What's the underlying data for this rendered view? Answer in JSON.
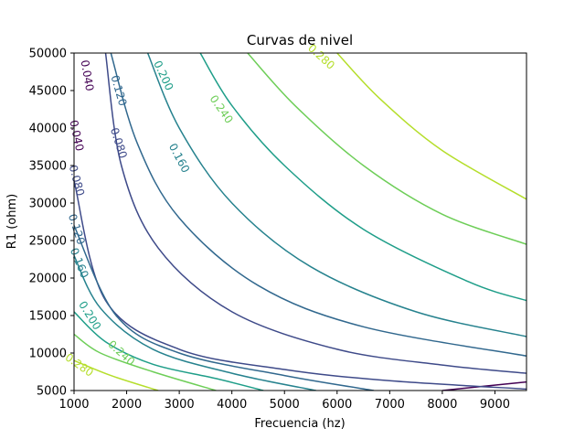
{
  "chart_data": {
    "type": "contour",
    "title": "Curvas de nivel",
    "xlabel": "Frecuencia (hz)",
    "ylabel": "R1 (ohm)",
    "xlim": [
      1000,
      9600
    ],
    "ylim": [
      5000,
      50000
    ],
    "x_ticks": [
      1000,
      2000,
      3000,
      4000,
      5000,
      6000,
      7000,
      8000,
      9000
    ],
    "y_ticks": [
      5000,
      10000,
      15000,
      20000,
      25000,
      30000,
      35000,
      40000,
      45000,
      50000
    ],
    "x_tick_labels": [
      "1000",
      "2000",
      "3000",
      "4000",
      "5000",
      "6000",
      "7000",
      "8000",
      "9000"
    ],
    "y_tick_labels": [
      "5000",
      "10000",
      "15000",
      "20000",
      "25000",
      "30000",
      "35000",
      "40000",
      "45000",
      "50000"
    ],
    "grid": false,
    "colormap": "viridis",
    "levels": [
      {
        "value": 0.04,
        "label": "0.040",
        "color": "#440154",
        "points": [
          [
            8000,
            5000
          ],
          [
            9600,
            6150
          ]
        ]
      },
      {
        "value": 0.08,
        "label": "0.080",
        "color": "#3e4a89",
        "points": [
          [
            1000,
            33000
          ],
          [
            1600,
            17000
          ],
          [
            3000,
            10500
          ],
          [
            5000,
            7800
          ],
          [
            7000,
            6300
          ],
          [
            9600,
            5200
          ]
        ]
      },
      {
        "value": 0.08,
        "label": "0.080",
        "color": "#3e4a89",
        "points": [
          [
            1600,
            50000
          ],
          [
            1900,
            35000
          ],
          [
            2600,
            24000
          ],
          [
            4000,
            15500
          ],
          [
            6000,
            10500
          ],
          [
            8000,
            8400
          ],
          [
            9600,
            7300
          ]
        ]
      },
      {
        "value": 0.12,
        "label": "0.120",
        "color": "#31688e",
        "points": [
          [
            1000,
            27000
          ],
          [
            1800,
            15000
          ],
          [
            3000,
            10000
          ],
          [
            5000,
            7000
          ],
          [
            6700,
            5000
          ]
        ]
      },
      {
        "value": 0.12,
        "label": "0.120",
        "color": "#31688e",
        "points": [
          [
            1700,
            50000
          ],
          [
            2200,
            38000
          ],
          [
            3000,
            28000
          ],
          [
            4500,
            19000
          ],
          [
            6500,
            13500
          ],
          [
            9600,
            9600
          ]
        ]
      },
      {
        "value": 0.16,
        "label": "0.160",
        "color": "#26828e",
        "points": [
          [
            1000,
            23000
          ],
          [
            1500,
            16000
          ],
          [
            2500,
            10500
          ],
          [
            4000,
            7300
          ],
          [
            5600,
            5000
          ]
        ]
      },
      {
        "value": 0.16,
        "label": "0.160",
        "color": "#26828e",
        "points": [
          [
            2400,
            50000
          ],
          [
            3000,
            40000
          ],
          [
            4000,
            30000
          ],
          [
            5500,
            21500
          ],
          [
            7500,
            15500
          ],
          [
            9600,
            12200
          ]
        ]
      },
      {
        "value": 0.2,
        "label": "0.200",
        "color": "#1f9e89",
        "points": [
          [
            1000,
            15500
          ],
          [
            1600,
            11500
          ],
          [
            2500,
            8500
          ],
          [
            3700,
            6600
          ],
          [
            4600,
            5000
          ]
        ]
      },
      {
        "value": 0.2,
        "label": "0.200",
        "color": "#1f9e89",
        "points": [
          [
            3400,
            50000
          ],
          [
            4000,
            43000
          ],
          [
            5000,
            35000
          ],
          [
            6500,
            26500
          ],
          [
            8500,
            19500
          ],
          [
            9600,
            17000
          ]
        ]
      },
      {
        "value": 0.24,
        "label": "0.240",
        "color": "#6ece58",
        "points": [
          [
            1000,
            12500
          ],
          [
            1500,
            10000
          ],
          [
            2500,
            7500
          ],
          [
            3700,
            5000
          ]
        ]
      },
      {
        "value": 0.24,
        "label": "0.240",
        "color": "#6ece58",
        "points": [
          [
            4300,
            50000
          ],
          [
            5200,
            43000
          ],
          [
            6500,
            35000
          ],
          [
            8000,
            28500
          ],
          [
            9600,
            24500
          ]
        ]
      },
      {
        "value": 0.28,
        "label": "0.280",
        "color": "#b5de2b",
        "points": [
          [
            1000,
            9000
          ],
          [
            1700,
            7000
          ],
          [
            2600,
            5000
          ]
        ]
      },
      {
        "value": 0.28,
        "label": "0.280",
        "color": "#b5de2b",
        "points": [
          [
            6000,
            50000
          ],
          [
            6800,
            44000
          ],
          [
            8000,
            37000
          ],
          [
            9600,
            30500
          ]
        ]
      }
    ],
    "contour_labels": [
      {
        "text": "0.040",
        "x": 1250,
        "y": 47000,
        "color": "#440154",
        "angle": 80
      },
      {
        "text": "0.040",
        "x": 1050,
        "y": 39000,
        "color": "#440154",
        "angle": 78
      },
      {
        "text": "0.080",
        "x": 1050,
        "y": 33000,
        "color": "#3e4a89",
        "angle": 75
      },
      {
        "text": "0.120",
        "x": 1050,
        "y": 26500,
        "color": "#31688e",
        "angle": 72
      },
      {
        "text": "0.160",
        "x": 1100,
        "y": 22000,
        "color": "#26828e",
        "angle": 68
      },
      {
        "text": "0.200",
        "x": 1300,
        "y": 15000,
        "color": "#1f9e89",
        "angle": 58
      },
      {
        "text": "0.240",
        "x": 1900,
        "y": 10000,
        "color": "#6ece58",
        "angle": 42
      },
      {
        "text": "0.280",
        "x": 1100,
        "y": 8400,
        "color": "#b5de2b",
        "angle": 35
      },
      {
        "text": "0.120",
        "x": 1850,
        "y": 45000,
        "color": "#31688e",
        "angle": 74
      },
      {
        "text": "0.080",
        "x": 1850,
        "y": 38000,
        "color": "#3e4a89",
        "angle": 72
      },
      {
        "text": "0.160",
        "x": 3000,
        "y": 36000,
        "color": "#26828e",
        "angle": 62
      },
      {
        "text": "0.200",
        "x": 2700,
        "y": 47000,
        "color": "#1f9e89",
        "angle": 65
      },
      {
        "text": "0.240",
        "x": 3800,
        "y": 42500,
        "color": "#6ece58",
        "angle": 55
      },
      {
        "text": "0.280",
        "x": 5700,
        "y": 49500,
        "color": "#b5de2b",
        "angle": 42
      }
    ]
  }
}
